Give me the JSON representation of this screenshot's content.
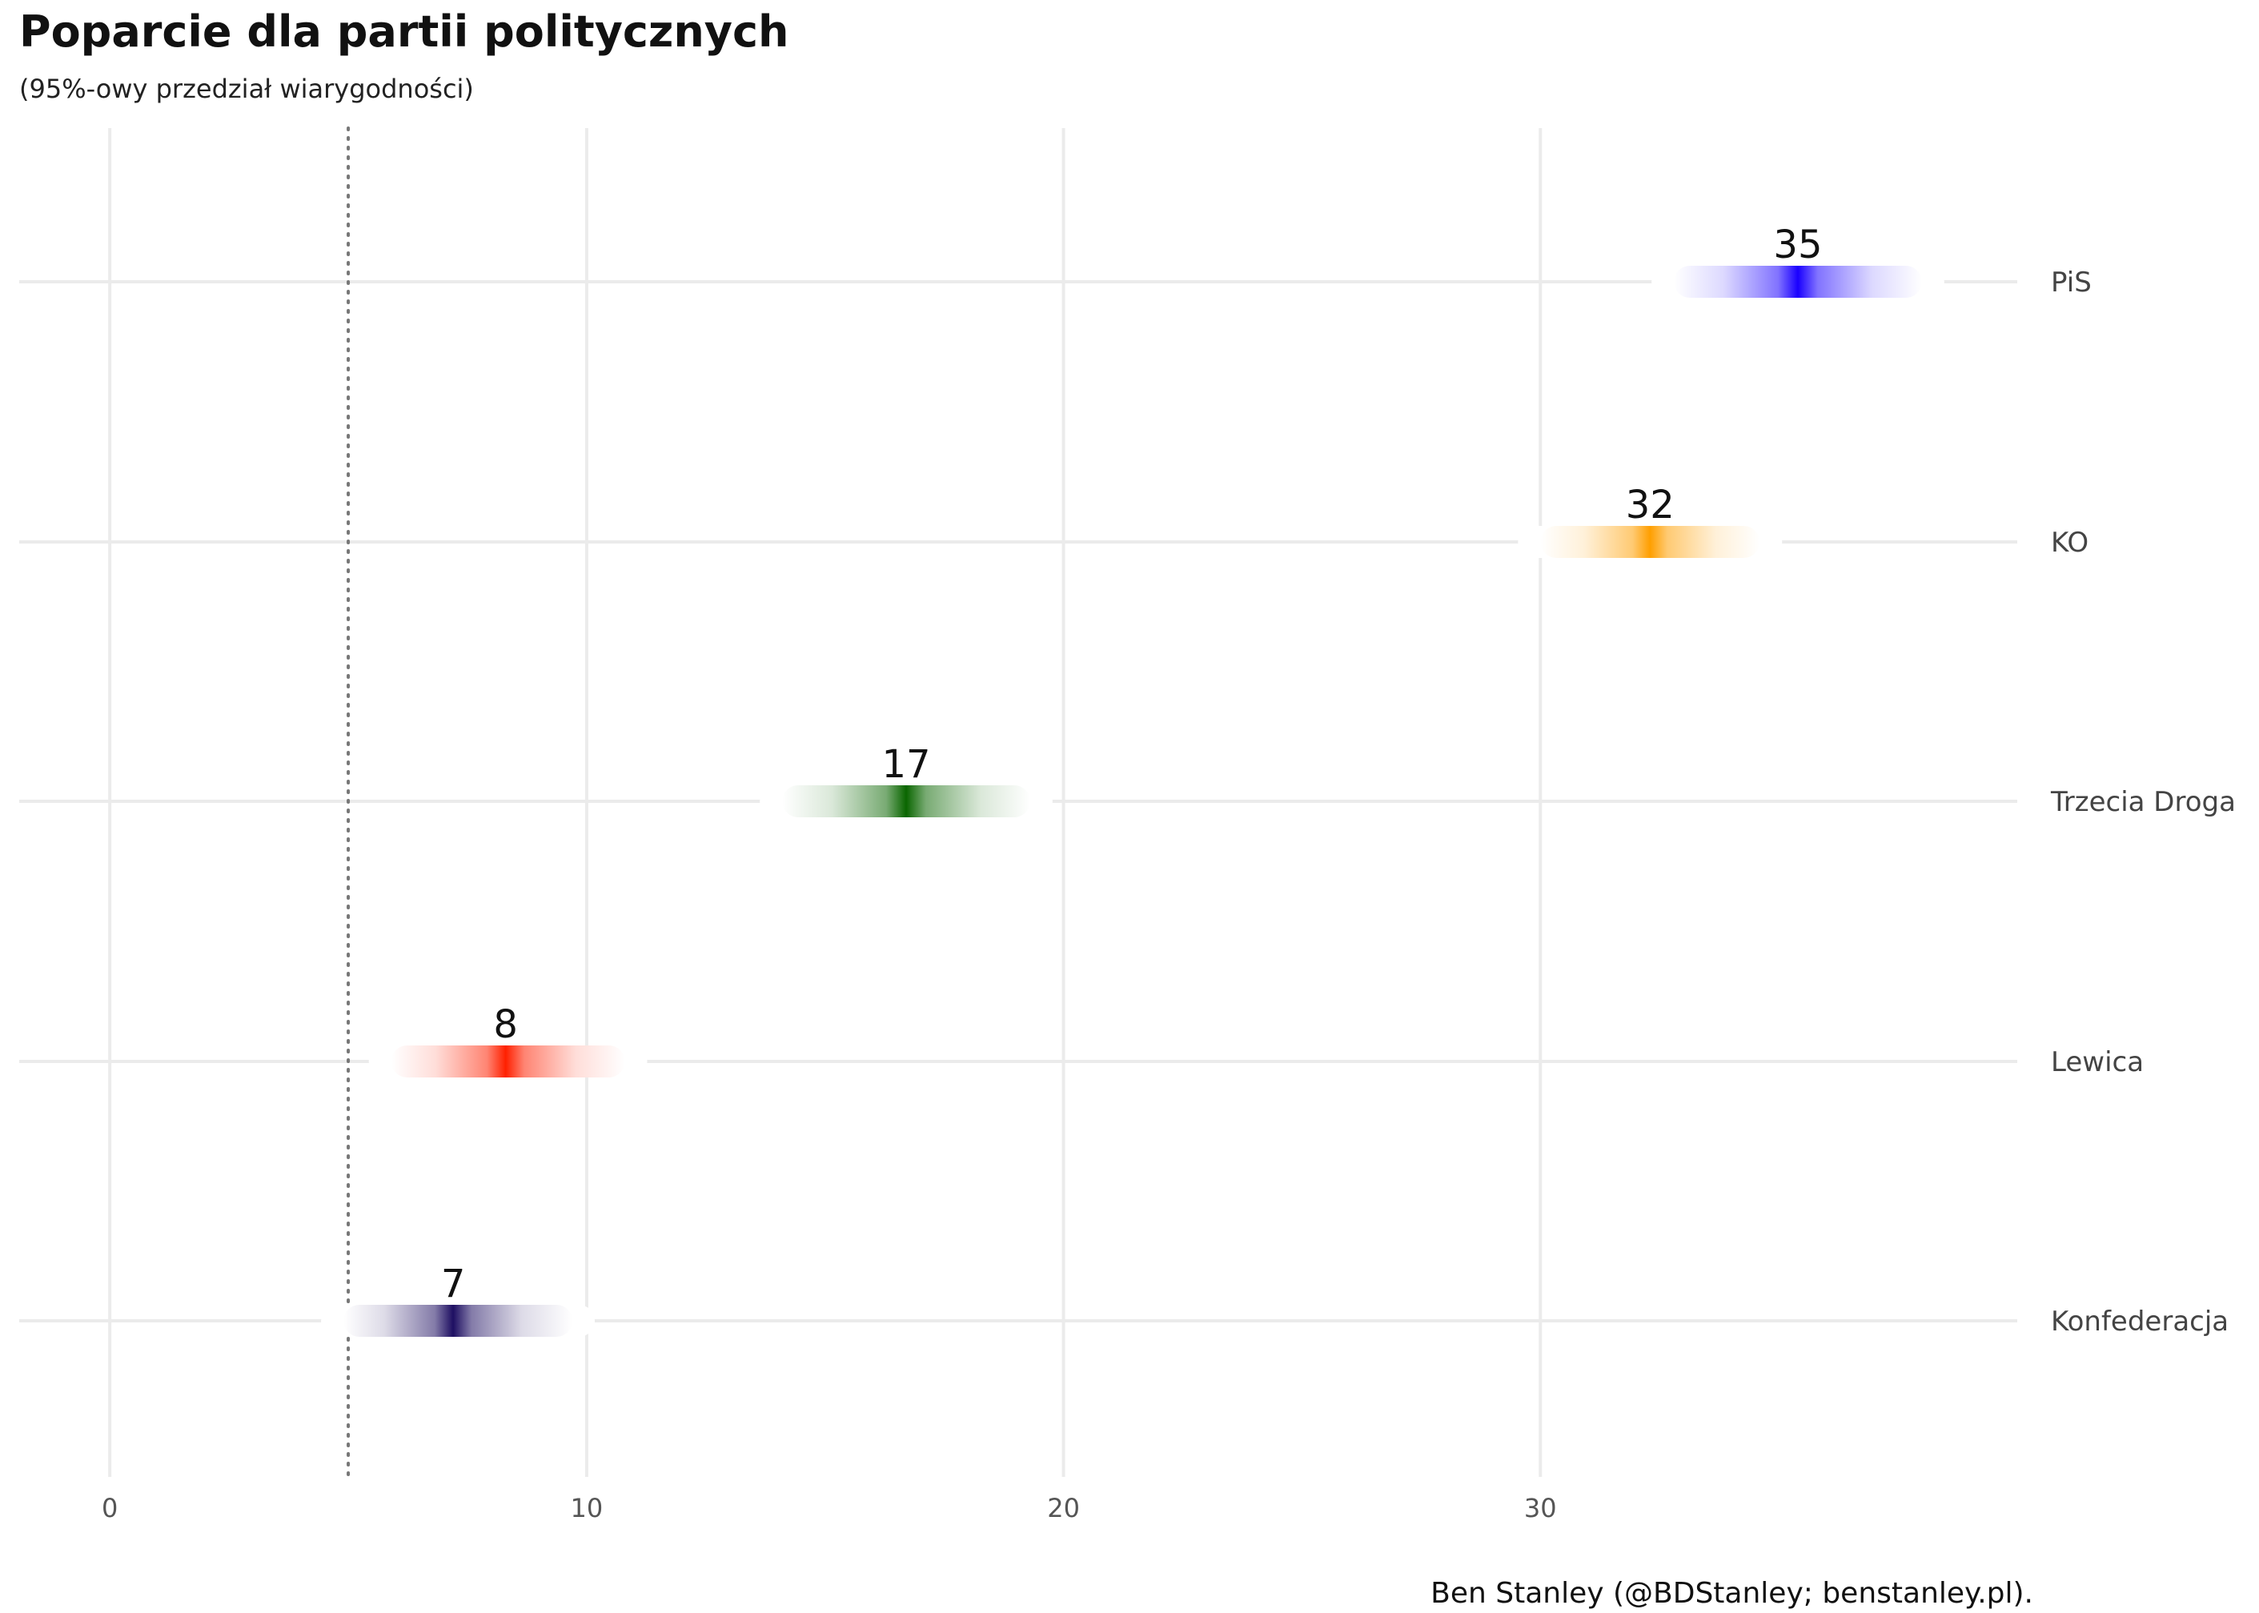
{
  "chart_data": {
    "type": "interval",
    "title": "Poparcie dla partii politycznych",
    "subtitle": "(95%-owy przedział wiarygodności)",
    "caption": "Ben Stanley (@BDStanley; benstanley.pl).",
    "xlabel": "",
    "ylabel": "",
    "xlim": [
      -1.9,
      40
    ],
    "x_ticks": [
      0,
      10,
      20,
      30
    ],
    "threshold": 5,
    "grid": true,
    "categories": [
      "PiS",
      "KO",
      "Trzecia Droga",
      "Lewica",
      "Konfederacja"
    ],
    "series": [
      {
        "category": "PiS",
        "value": 35,
        "center": 35.4,
        "low": 32.8,
        "high": 38.0,
        "color": "#1a00ff"
      },
      {
        "category": "KO",
        "value": 32,
        "center": 32.3,
        "low": 30.0,
        "high": 34.6,
        "color": "#ff9f00"
      },
      {
        "category": "Trzecia Droga",
        "value": 17,
        "center": 16.7,
        "low": 14.1,
        "high": 19.3,
        "color": "#0a6600"
      },
      {
        "category": "Lewica",
        "value": 8,
        "center": 8.3,
        "low": 5.9,
        "high": 10.8,
        "color": "#ff2000"
      },
      {
        "category": "Konfederacja",
        "value": 7,
        "center": 7.2,
        "low": 4.9,
        "high": 9.7,
        "color": "#1e0f62"
      }
    ]
  }
}
